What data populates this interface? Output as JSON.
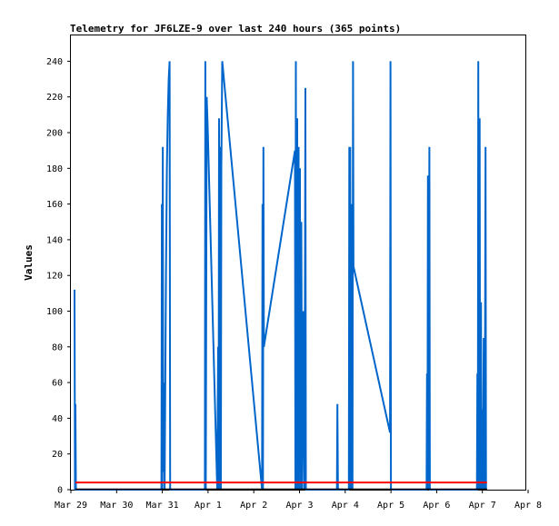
{
  "chart_data": {
    "type": "line",
    "title": "Telemetry for JF6LZE-9 over last 240 hours (365 points)",
    "xlabel": "",
    "ylabel": "Values",
    "xlim": [
      0,
      10
    ],
    "ylim": [
      0,
      255
    ],
    "x_ticks": [
      {
        "label": "Mar 29",
        "x": 0
      },
      {
        "label": "Mar 30",
        "x": 1
      },
      {
        "label": "Mar 31",
        "x": 2
      },
      {
        "label": "Apr 1",
        "x": 3
      },
      {
        "label": "Apr 2",
        "x": 4
      },
      {
        "label": "Apr 3",
        "x": 5
      },
      {
        "label": "Apr 4",
        "x": 6
      },
      {
        "label": "Apr 5",
        "x": 7
      },
      {
        "label": "Apr 6",
        "x": 8
      },
      {
        "label": "Apr 7",
        "x": 9
      },
      {
        "label": "Apr 8",
        "x": 10
      }
    ],
    "y_ticks": [
      0,
      20,
      40,
      60,
      80,
      100,
      120,
      140,
      160,
      180,
      200,
      220,
      240
    ],
    "grid": false,
    "series": [
      {
        "color": "#0066cc",
        "points": [
          [
            0.08,
            112
          ],
          [
            0.09,
            0
          ],
          [
            0.1,
            48
          ],
          [
            0.11,
            0
          ],
          [
            1.98,
            0
          ],
          [
            1.99,
            160
          ],
          [
            2.0,
            0
          ],
          [
            2.01,
            192
          ],
          [
            2.02,
            10
          ],
          [
            2.03,
            60
          ],
          [
            2.05,
            0
          ],
          [
            2.08,
            120
          ],
          [
            2.1,
            180
          ],
          [
            2.12,
            210
          ],
          [
            2.14,
            230
          ],
          [
            2.16,
            240
          ],
          [
            2.17,
            0
          ],
          [
            2.93,
            0
          ],
          [
            2.94,
            240
          ],
          [
            2.95,
            0
          ],
          [
            2.97,
            220
          ],
          [
            2.99,
            205
          ],
          [
            3.2,
            0
          ],
          [
            3.22,
            80
          ],
          [
            3.23,
            0
          ],
          [
            3.24,
            208
          ],
          [
            3.25,
            0
          ],
          [
            3.27,
            192
          ],
          [
            3.28,
            0
          ],
          [
            3.29,
            180
          ],
          [
            3.31,
            240
          ],
          [
            4.18,
            0
          ],
          [
            4.19,
            160
          ],
          [
            4.2,
            0
          ],
          [
            4.21,
            192
          ],
          [
            4.22,
            80
          ],
          [
            4.9,
            190
          ],
          [
            4.91,
            0
          ],
          [
            4.92,
            240
          ],
          [
            4.93,
            0
          ],
          [
            4.95,
            208
          ],
          [
            4.96,
            0
          ],
          [
            4.98,
            192
          ],
          [
            4.99,
            0
          ],
          [
            5.01,
            180
          ],
          [
            5.02,
            0
          ],
          [
            5.04,
            150
          ],
          [
            5.06,
            0
          ],
          [
            5.08,
            100
          ],
          [
            5.1,
            30
          ],
          [
            5.11,
            0
          ],
          [
            5.13,
            225
          ],
          [
            5.14,
            0
          ],
          [
            5.82,
            0
          ],
          [
            5.83,
            48
          ],
          [
            5.84,
            0
          ],
          [
            6.08,
            0
          ],
          [
            6.09,
            192
          ],
          [
            6.1,
            95
          ],
          [
            6.11,
            192
          ],
          [
            6.12,
            0
          ],
          [
            6.14,
            160
          ],
          [
            6.16,
            0
          ],
          [
            6.17,
            240
          ],
          [
            6.18,
            125
          ],
          [
            6.98,
            32
          ],
          [
            6.99,
            240
          ],
          [
            7.0,
            0
          ],
          [
            7.78,
            0
          ],
          [
            7.79,
            65
          ],
          [
            7.8,
            0
          ],
          [
            7.81,
            176
          ],
          [
            7.82,
            0
          ],
          [
            7.84,
            192
          ],
          [
            7.85,
            0
          ],
          [
            8.88,
            0
          ],
          [
            8.89,
            65
          ],
          [
            8.9,
            0
          ],
          [
            8.91,
            240
          ],
          [
            8.92,
            0
          ],
          [
            8.94,
            208
          ],
          [
            8.95,
            0
          ],
          [
            8.97,
            105
          ],
          [
            8.98,
            0
          ],
          [
            9.0,
            45
          ],
          [
            9.01,
            0
          ],
          [
            9.03,
            85
          ],
          [
            9.05,
            0
          ],
          [
            9.07,
            192
          ],
          [
            9.08,
            0
          ]
        ]
      },
      {
        "color": "#ff0000",
        "points": [
          [
            0.1,
            4
          ],
          [
            9.1,
            4
          ]
        ]
      }
    ]
  }
}
